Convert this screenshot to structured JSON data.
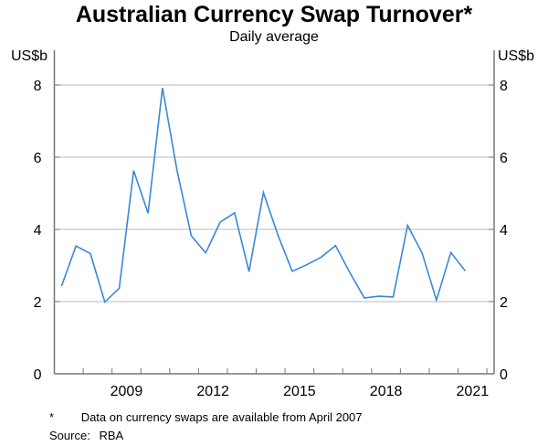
{
  "chart_data": {
    "type": "line",
    "title": "Australian Currency Swap Turnover*",
    "subtitle": "Daily average",
    "ylabel_left": "US$b",
    "ylabel_right": "US$b",
    "ylim": [
      0,
      8
    ],
    "yticks": [
      0,
      2,
      4,
      6,
      8
    ],
    "xlim": [
      "2007-01",
      "2022-04"
    ],
    "xtick_labels": [
      "2009",
      "2012",
      "2015",
      "2018",
      "2021"
    ],
    "grid": true,
    "line_color": "#3a87d9",
    "x": [
      "2007-04",
      "2007-10",
      "2008-04",
      "2008-10",
      "2009-04",
      "2009-10",
      "2010-04",
      "2010-10",
      "2011-04",
      "2011-10",
      "2012-04",
      "2012-10",
      "2013-04",
      "2013-10",
      "2014-04",
      "2014-10",
      "2015-04",
      "2015-10",
      "2016-04",
      "2016-10",
      "2017-04",
      "2017-10",
      "2018-04",
      "2018-10",
      "2019-04",
      "2019-10",
      "2020-04",
      "2020-10",
      "2021-04"
    ],
    "values": [
      2.43,
      3.54,
      3.33,
      1.99,
      2.37,
      5.63,
      4.45,
      7.92,
      5.65,
      3.82,
      3.35,
      4.2,
      4.46,
      2.83,
      5.02,
      3.85,
      2.84,
      3.02,
      3.23,
      3.55,
      2.8,
      2.1,
      2.15,
      2.13,
      4.11,
      3.35,
      2.04,
      3.36,
      2.85
    ]
  },
  "footnotes": {
    "asterisk": "*",
    "note": "Data on currency swaps are available from April 2007",
    "source_label": "Source:",
    "source": "RBA"
  }
}
